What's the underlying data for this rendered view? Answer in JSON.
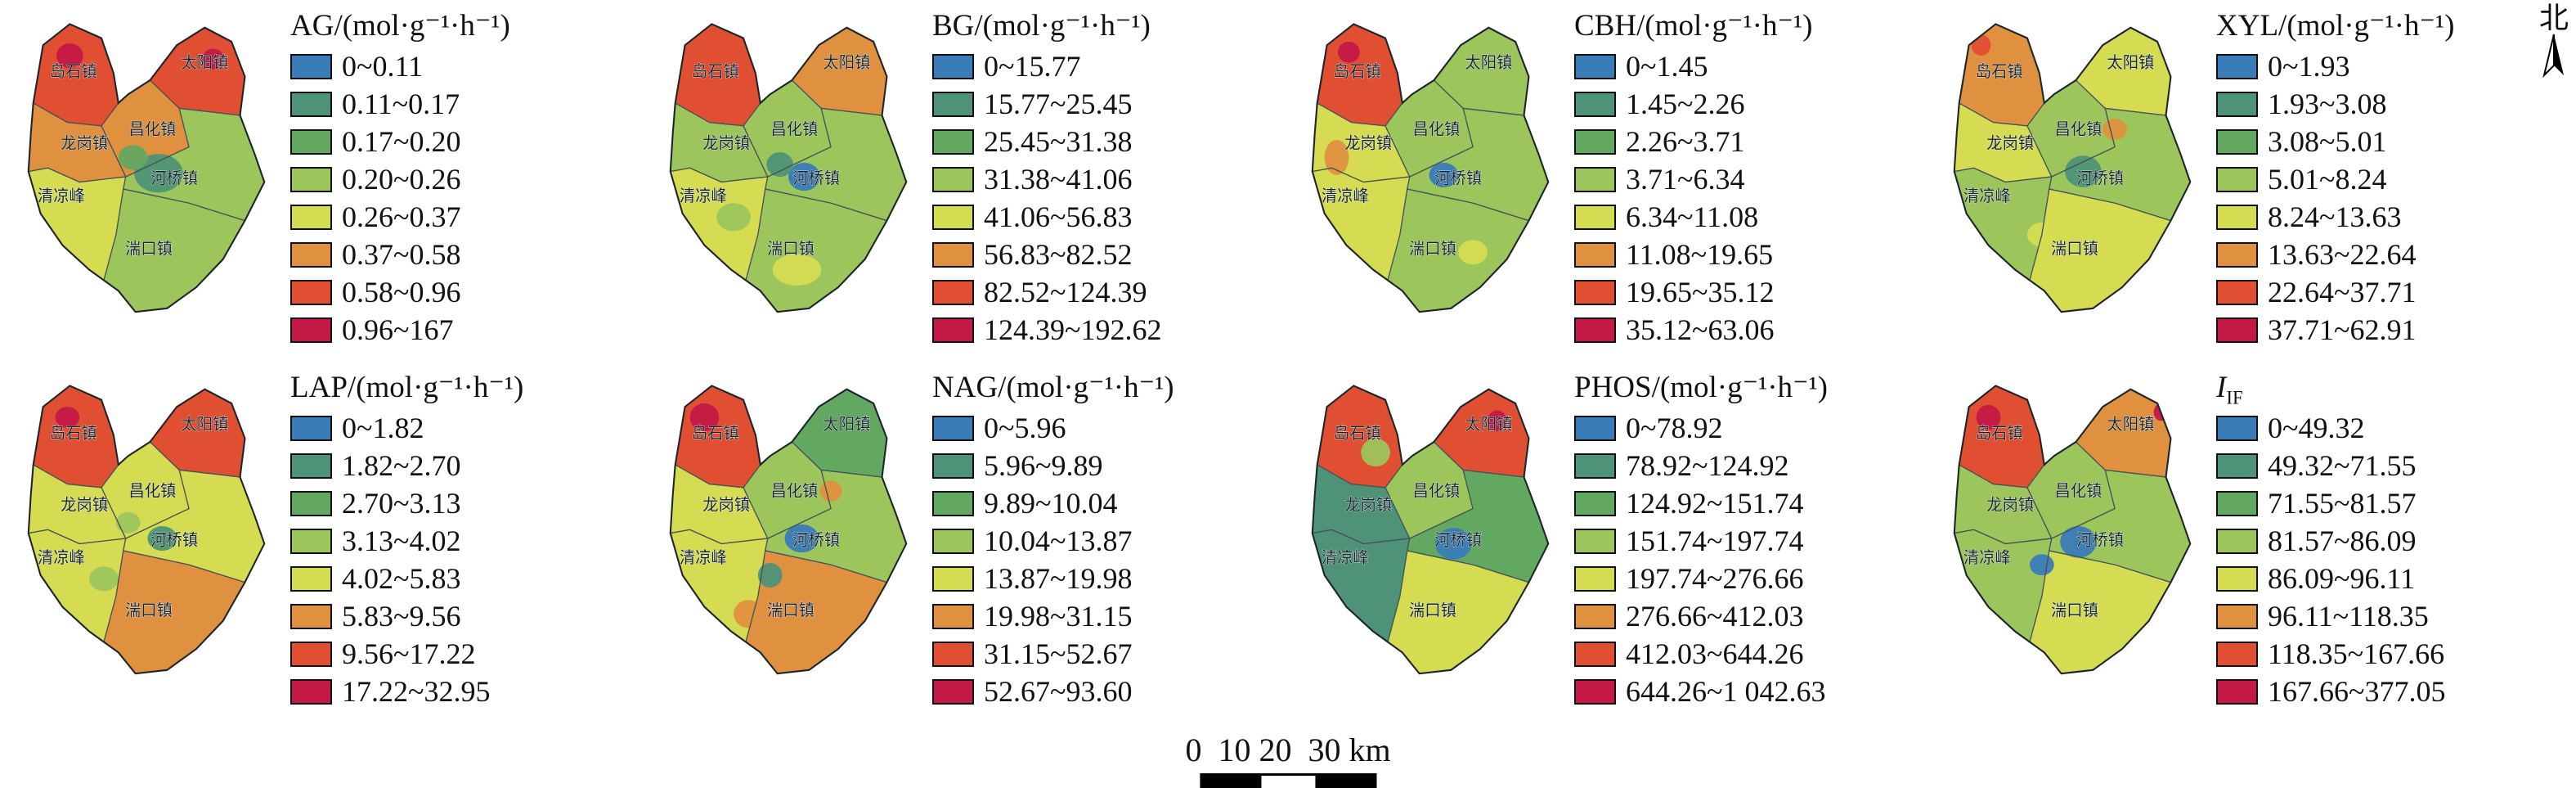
{
  "figure": {
    "north_label": "北",
    "scale_text": "0  10 20  30 km"
  },
  "legend_colors": [
    "#3a7cb8",
    "#4e9377",
    "#63a861",
    "#9cc55c",
    "#d6dc51",
    "#e0913f",
    "#e14f33",
    "#c41847"
  ],
  "towns": [
    "岛石镇",
    "太阳镇",
    "龙岗镇",
    "昌化镇",
    "清凉峰",
    "河桥镇",
    "湍口镇"
  ],
  "maps": [
    {
      "id": "AG",
      "title_label": "AG",
      "title_sub": "",
      "title_unit": "/(mol·g⁻¹·h⁻¹)",
      "title_italic": false,
      "classes": [
        "0~0.11",
        "0.11~0.17",
        "0.17~0.20",
        "0.20~0.26",
        "0.26~0.37",
        "0.37~0.58",
        "0.58~0.96",
        "0.96~167"
      ],
      "region_fills": [
        7,
        7,
        6,
        6,
        5,
        4,
        4
      ],
      "patches": [
        [
          125,
          95,
          20,
          11,
          2
        ],
        [
          104,
          86,
          12,
          7,
          3
        ],
        [
          52,
          28,
          11,
          7,
          8
        ],
        [
          170,
          30,
          9,
          6,
          8
        ]
      ]
    },
    {
      "id": "BG",
      "title_label": "BG",
      "title_sub": "",
      "title_unit": "/(mol·g⁻¹·h⁻¹)",
      "title_italic": false,
      "classes": [
        "0~15.77",
        "15.77~25.45",
        "25.45~31.38",
        "31.38~41.06",
        "41.06~56.83",
        "56.83~82.52",
        "82.52~124.39",
        "124.39~192.62"
      ],
      "region_fills": [
        7,
        6,
        4,
        4,
        5,
        4,
        4
      ],
      "patches": [
        [
          128,
          97,
          13,
          8,
          1
        ],
        [
          108,
          90,
          11,
          7,
          2
        ],
        [
          122,
          150,
          20,
          9,
          5
        ],
        [
          70,
          120,
          14,
          8,
          4
        ]
      ]
    },
    {
      "id": "CBH",
      "title_label": "CBH",
      "title_sub": "",
      "title_unit": "/(mol·g⁻¹·h⁻¹)",
      "title_italic": false,
      "classes": [
        "0~1.45",
        "1.45~2.26",
        "2.26~3.71",
        "3.71~6.34",
        "6.34~11.08",
        "11.08~19.65",
        "19.65~35.12",
        "35.12~63.06"
      ],
      "region_fills": [
        7,
        4,
        5,
        4,
        5,
        4,
        4
      ],
      "patches": [
        [
          126,
          96,
          12,
          7,
          1
        ],
        [
          48,
          26,
          9,
          6,
          8
        ],
        [
          38,
          86,
          10,
          10,
          6
        ],
        [
          150,
          140,
          12,
          7,
          5
        ]
      ]
    },
    {
      "id": "XYL",
      "title_label": "XYL",
      "title_sub": "",
      "title_unit": "/(mol·g⁻¹·h⁻¹)",
      "title_italic": false,
      "classes": [
        "0~1.93",
        "1.93~3.08",
        "3.08~5.01",
        "5.01~8.24",
        "8.24~13.63",
        "13.63~22.64",
        "22.64~37.71",
        "37.71~62.91"
      ],
      "region_fills": [
        6,
        5,
        5,
        4,
        4,
        4,
        5
      ],
      "patches": [
        [
          124,
          94,
          15,
          9,
          2
        ],
        [
          40,
          22,
          8,
          6,
          7
        ],
        [
          150,
          70,
          10,
          6,
          6
        ],
        [
          90,
          130,
          12,
          7,
          5
        ]
      ]
    },
    {
      "id": "LAP",
      "title_label": "LAP",
      "title_sub": "",
      "title_unit": "/(mol·g⁻¹·h⁻¹)",
      "title_italic": false,
      "classes": [
        "0~1.82",
        "1.82~2.70",
        "2.70~3.13",
        "3.13~4.02",
        "4.02~5.83",
        "5.83~9.56",
        "9.56~17.22",
        "17.22~32.95"
      ],
      "region_fills": [
        7,
        7,
        5,
        5,
        5,
        5,
        6
      ],
      "patches": [
        [
          128,
          97,
          12,
          7,
          2
        ],
        [
          50,
          28,
          10,
          6,
          8
        ],
        [
          100,
          88,
          10,
          6,
          4
        ],
        [
          80,
          120,
          12,
          7,
          4
        ]
      ]
    },
    {
      "id": "NAG",
      "title_label": "NAG",
      "title_sub": "",
      "title_unit": "/(mol·g⁻¹·h⁻¹)",
      "title_italic": false,
      "classes": [
        "0~5.96",
        "5.96~9.89",
        "9.89~10.04",
        "10.04~13.87",
        "13.87~19.98",
        "19.98~31.15",
        "31.15~52.67",
        "52.67~93.60"
      ],
      "region_fills": [
        7,
        3,
        5,
        4,
        5,
        4,
        6
      ],
      "patches": [
        [
          46,
          28,
          12,
          8,
          8
        ],
        [
          126,
          97,
          14,
          8,
          1
        ],
        [
          100,
          118,
          10,
          7,
          2
        ],
        [
          82,
          140,
          12,
          8,
          6
        ],
        [
          150,
          70,
          9,
          6,
          6
        ]
      ]
    },
    {
      "id": "PHOS",
      "title_label": "PHOS",
      "title_sub": "",
      "title_unit": "/(mol·g⁻¹·h⁻¹)",
      "title_italic": false,
      "classes": [
        "0~78.92",
        "78.92~124.92",
        "124.92~151.74",
        "151.74~197.74",
        "197.74~276.66",
        "276.66~412.03",
        "412.03~644.26",
        "644.26~1 042.63"
      ],
      "region_fills": [
        7,
        7,
        2,
        4,
        2,
        3,
        5
      ],
      "patches": [
        [
          134,
          100,
          15,
          9,
          1
        ],
        [
          70,
          48,
          12,
          8,
          4
        ],
        [
          120,
          150,
          22,
          9,
          5
        ],
        [
          170,
          30,
          8,
          6,
          8
        ]
      ]
    },
    {
      "id": "IIF",
      "title_label": "I",
      "title_sub": "IF",
      "title_unit": "",
      "title_italic": true,
      "classes": [
        "0~49.32",
        "49.32~71.55",
        "71.55~81.57",
        "81.57~86.09",
        "86.09~96.11",
        "96.11~118.35",
        "118.35~167.66",
        "167.66~377.05"
      ],
      "region_fills": [
        7,
        6,
        4,
        4,
        4,
        4,
        5
      ],
      "patches": [
        [
          120,
          99,
          15,
          9,
          1
        ],
        [
          90,
          112,
          10,
          6,
          1
        ],
        [
          188,
          25,
          6,
          5,
          8
        ],
        [
          46,
          28,
          10,
          7,
          8
        ]
      ]
    }
  ]
}
